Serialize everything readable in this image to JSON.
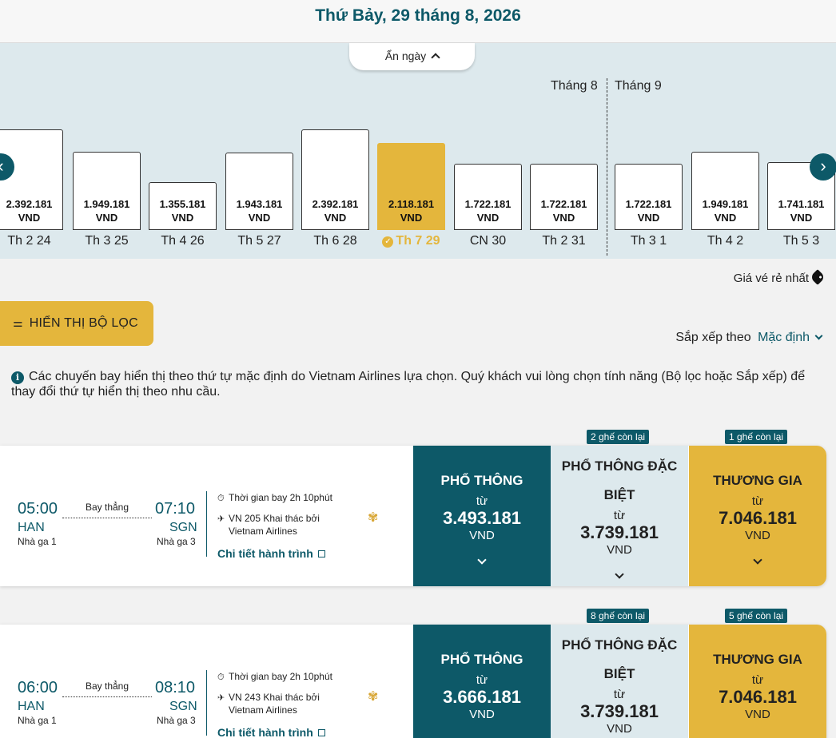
{
  "header": {
    "date_title": "Thứ Bảy, 29 tháng 8, 2026"
  },
  "calendar": {
    "hide_label": "Ẩn ngày",
    "months": [
      "Tháng 8",
      "Tháng 9"
    ],
    "days": [
      {
        "label": "Th 2 24",
        "price": "2.392.181",
        "currency": "VND",
        "fare": 2392181
      },
      {
        "label": "Th 3 25",
        "price": "1.949.181",
        "currency": "VND",
        "fare": 1949181
      },
      {
        "label": "Th 4 26",
        "price": "1.355.181",
        "currency": "VND",
        "fare": 1355181
      },
      {
        "label": "Th 5 27",
        "price": "1.943.181",
        "currency": "VND",
        "fare": 1943181
      },
      {
        "label": "Th 6 28",
        "price": "2.392.181",
        "currency": "VND",
        "fare": 2392181
      },
      {
        "label": "Th 7 29",
        "price": "2.118.181",
        "currency": "VND",
        "fare": 2118181,
        "selected": true
      },
      {
        "label": "CN 30",
        "price": "1.722.181",
        "currency": "VND",
        "fare": 1722181
      },
      {
        "label": "Th 2 31",
        "price": "1.722.181",
        "currency": "VND",
        "fare": 1722181
      },
      {
        "label": "Th 3 1",
        "price": "1.722.181",
        "currency": "VND",
        "fare": 1722181
      },
      {
        "label": "Th 4 2",
        "price": "1.949.181",
        "currency": "VND",
        "fare": 1949181
      },
      {
        "label": "Th 5 3",
        "price": "1.741.181",
        "currency": "VND",
        "fare": 1741181
      }
    ],
    "prev_icon": "chevron-left-icon",
    "next_icon": "chevron-right-icon"
  },
  "cheapest_label": "Giá vé rẻ nhất",
  "filter_button": "HIỂN THỊ BỘ LỌC",
  "sort": {
    "label": "Sắp xếp theo",
    "value": "Mặc định"
  },
  "notice": "Các chuyến bay hiển thị theo thứ tự mặc định do Vietnam Airlines lựa chọn. Quý khách vui lòng chọn tính năng (Bộ lọc hoặc Sắp xếp) để thay đổi thứ tự hiển thị theo nhu cầu.",
  "flights": [
    {
      "depart_time": "05:00",
      "depart_code": "HAN",
      "depart_terminal": "Nhà ga 1",
      "arrive_time": "07:10",
      "arrive_code": "SGN",
      "arrive_terminal": "Nhà ga 3",
      "stops": "Bay thẳng",
      "duration": "Thời gian bay 2h 10phút",
      "flight_line1": "VN 205 Khai thác bởi",
      "flight_line2": "Vietnam Airlines",
      "details": "Chi tiết hành trình",
      "fares": {
        "economy": {
          "name": "PHỔ THÔNG",
          "from": "từ",
          "price": "3.493.181",
          "currency": "VND"
        },
        "premium": {
          "name1": "PHỔ THÔNG ĐẶC",
          "name2": "BIỆT",
          "from": "từ",
          "price": "3.739.181",
          "currency": "VND",
          "seats": "2 ghế còn lại"
        },
        "business": {
          "name": "THƯƠNG GIA",
          "from": "từ",
          "price": "7.046.181",
          "currency": "VND",
          "seats": "1 ghế còn lại"
        }
      }
    },
    {
      "depart_time": "06:00",
      "depart_code": "HAN",
      "depart_terminal": "Nhà ga 1",
      "arrive_time": "08:10",
      "arrive_code": "SGN",
      "arrive_terminal": "Nhà ga 3",
      "stops": "Bay thẳng",
      "duration": "Thời gian bay 2h 10phút",
      "flight_line1": "VN 243 Khai thác bởi",
      "flight_line2": "Vietnam Airlines",
      "details": "Chi tiết hành trình",
      "fares": {
        "economy": {
          "name": "PHỔ THÔNG",
          "from": "từ",
          "price": "3.666.181",
          "currency": "VND"
        },
        "premium": {
          "name1": "PHỔ THÔNG ĐẶC",
          "name2": "BIỆT",
          "from": "từ",
          "price": "3.739.181",
          "currency": "VND",
          "seats": "8 ghế còn lại"
        },
        "business": {
          "name": "THƯƠNG GIA",
          "from": "từ",
          "price": "7.046.181",
          "currency": "VND",
          "seats": "5 ghế còn lại"
        }
      }
    }
  ]
}
